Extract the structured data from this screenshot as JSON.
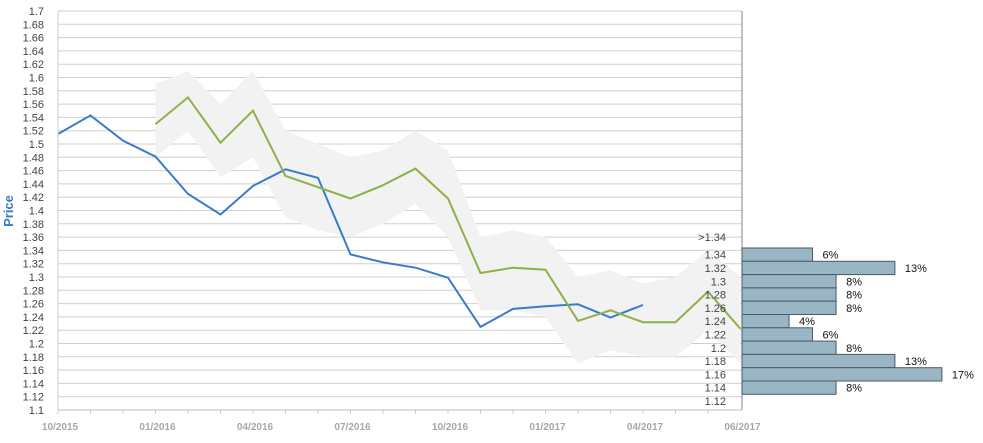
{
  "chart_data": {
    "type": "line",
    "ylabel": "Price",
    "ylim": [
      1.1,
      1.7
    ],
    "y_ticks": [
      1.1,
      1.12,
      1.14,
      1.16,
      1.18,
      1.2,
      1.22,
      1.24,
      1.26,
      1.28,
      1.3,
      1.32,
      1.34,
      1.36,
      1.38,
      1.4,
      1.42,
      1.44,
      1.46,
      1.48,
      1.5,
      1.52,
      1.54,
      1.56,
      1.58,
      1.6,
      1.62,
      1.64,
      1.66,
      1.68,
      1.7
    ],
    "x_tick_labels": [
      "10/2015",
      "01/2016",
      "04/2016",
      "07/2016",
      "10/2016",
      "01/2017",
      "04/2017",
      "06/2017"
    ],
    "x_months": [
      "2015-10",
      "2015-11",
      "2015-12",
      "2016-01",
      "2016-02",
      "2016-03",
      "2016-04",
      "2016-05",
      "2016-06",
      "2016-07",
      "2016-08",
      "2016-09",
      "2016-10",
      "2016-11",
      "2016-12",
      "2017-01",
      "2017-02",
      "2017-03",
      "2017-04",
      "2017-05",
      "2017-06"
    ],
    "grid": true,
    "colors": {
      "actual": "#3a7cc8",
      "forecast": "#8db04a",
      "band": "#f2f2f2",
      "histogram": "#9ab5c4",
      "histogram_edge": "#4a5a66",
      "grid": "#cfcfcf",
      "axis_text": "#444444",
      "x_text": "#a7a7a7",
      "ylabel": "#3a7cc8"
    },
    "series": [
      {
        "key": "actual",
        "values": [
          1.515,
          1.543,
          1.505,
          1.481,
          1.425,
          1.394,
          1.437,
          1.462,
          1.449,
          1.334,
          1.322,
          1.314,
          1.299,
          1.225,
          1.252,
          1.256,
          1.259,
          1.239,
          1.258
        ]
      },
      {
        "key": "forecast",
        "start_index": 3,
        "values": [
          1.53,
          1.57,
          1.502,
          1.55,
          1.452,
          1.435,
          1.418,
          1.438,
          1.463,
          1.418,
          1.306,
          1.314,
          1.311,
          1.234,
          1.25,
          1.232,
          1.232,
          1.278,
          1.222
        ]
      }
    ],
    "band": {
      "start_index": 3,
      "upper": [
        1.59,
        1.61,
        1.56,
        1.61,
        1.52,
        1.5,
        1.48,
        1.49,
        1.52,
        1.49,
        1.36,
        1.37,
        1.36,
        1.3,
        1.31,
        1.29,
        1.3,
        1.34,
        1.3
      ],
      "lower": [
        1.48,
        1.52,
        1.45,
        1.48,
        1.39,
        1.37,
        1.36,
        1.38,
        1.41,
        1.36,
        1.25,
        1.25,
        1.24,
        1.17,
        1.19,
        1.18,
        1.18,
        1.22,
        1.17
      ]
    },
    "histogram": {
      "title": ">1.34",
      "bins": [
        {
          "label": "1.34",
          "percent": 6,
          "value_label": "6%"
        },
        {
          "label": "1.32",
          "percent": 13,
          "value_label": "13%"
        },
        {
          "label": "1.3",
          "percent": 8,
          "value_label": "8%"
        },
        {
          "label": "1.28",
          "percent": 8,
          "value_label": "8%"
        },
        {
          "label": "1.26",
          "percent": 8,
          "value_label": "8%"
        },
        {
          "label": "1.24",
          "percent": 4,
          "value_label": "4%"
        },
        {
          "label": "1.22",
          "percent": 6,
          "value_label": "6%"
        },
        {
          "label": "1.2",
          "percent": 8,
          "value_label": "8%"
        },
        {
          "label": "1.18",
          "percent": 13,
          "value_label": "13%"
        },
        {
          "label": "1.16",
          "percent": 17,
          "value_label": "17%"
        },
        {
          "label": "1.14",
          "percent": 8,
          "value_label": "8%"
        },
        {
          "label": "1.12",
          "percent": null,
          "value_label": ""
        }
      ]
    }
  }
}
